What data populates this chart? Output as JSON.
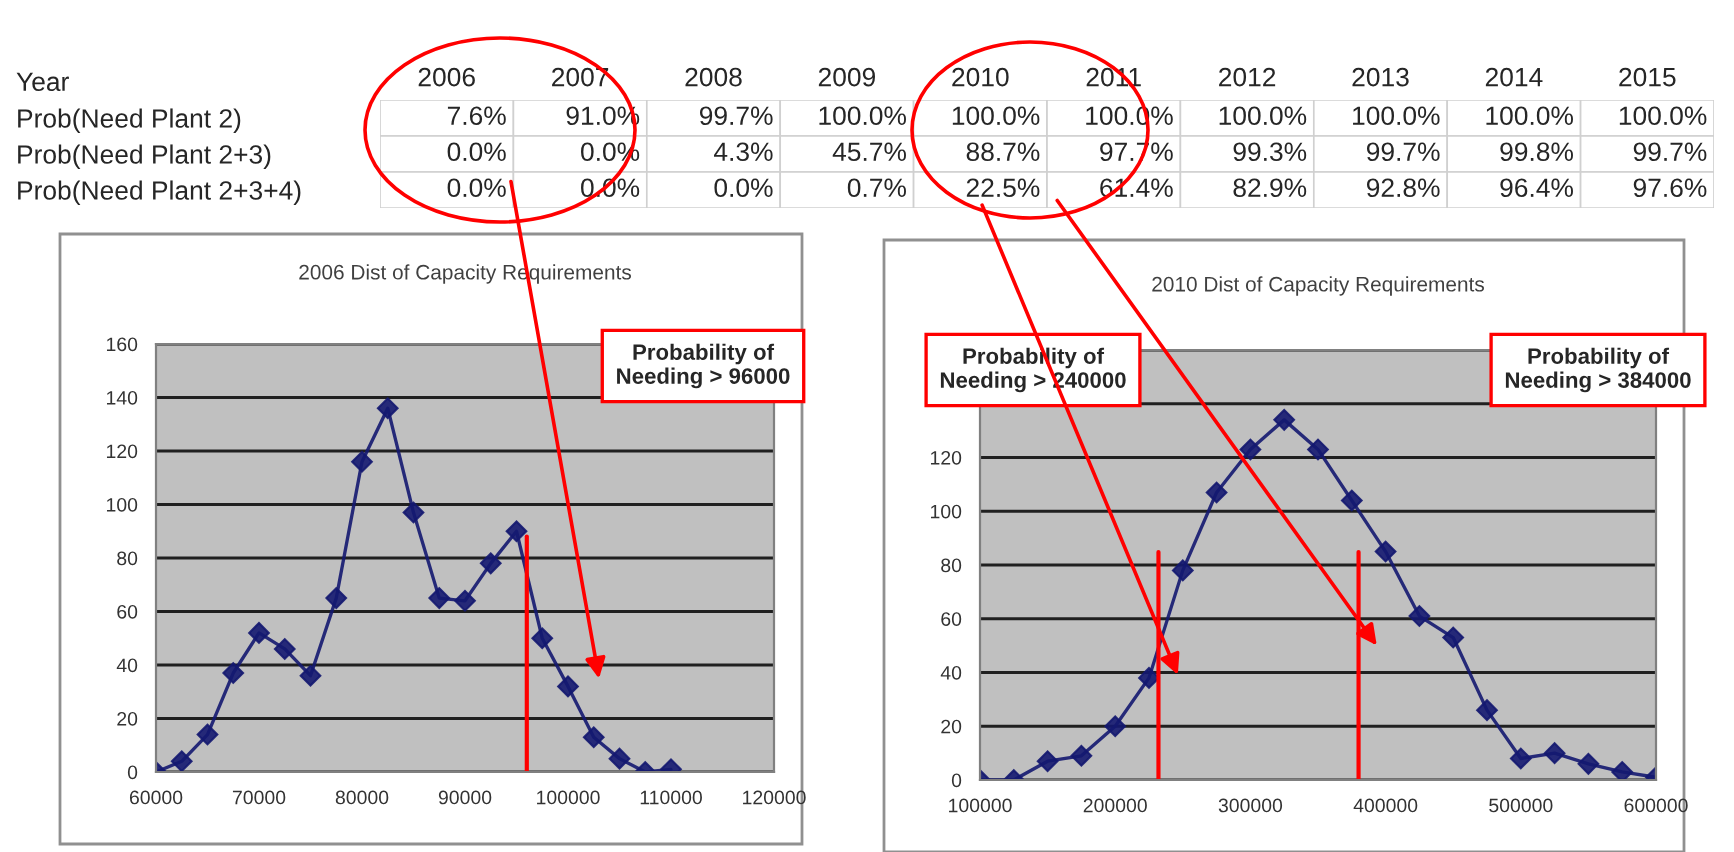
{
  "chart_data": [
    {
      "type": "heatmap",
      "annotations": [
        "Year"
      ],
      "categories": [
        "2006",
        "2007",
        "2008",
        "2009",
        "2010",
        "2011",
        "2012",
        "2013",
        "2014",
        "2015"
      ],
      "y_categories": [
        "Prob(Need Plant 2)",
        "Prob(Need Plant 2+3)",
        "Prob(Need Plant 2+3+4)"
      ],
      "cells": [
        [
          "7.6%",
          "91.0%",
          "99.7%",
          "100.0%",
          "100.0%",
          "100.0%",
          "100.0%",
          "100.0%",
          "100.0%",
          "100.0%"
        ],
        [
          "0.0%",
          "0.0%",
          "4.3%",
          "45.7%",
          "88.7%",
          "97.7%",
          "99.3%",
          "99.7%",
          "99.8%",
          "99.7%"
        ],
        [
          "0.0%",
          "0.0%",
          "0.0%",
          "0.7%",
          "22.5%",
          "61.4%",
          "82.9%",
          "92.8%",
          "96.4%",
          "97.6%"
        ]
      ]
    },
    {
      "type": "line",
      "title": "2006 Dist of Capacity Requirements",
      "marker": "diamond",
      "grid": "y",
      "x": [
        60000,
        62500,
        65000,
        67500,
        70000,
        72500,
        75000,
        77500,
        80000,
        82500,
        85000,
        87500,
        90000,
        92500,
        95000,
        97500,
        100000,
        102500,
        105000,
        107500,
        110000
      ],
      "series": [
        {
          "color": "#141870",
          "values": [
            0,
            4,
            14,
            37,
            52,
            46,
            36,
            65,
            116,
            136,
            97,
            65,
            64,
            78,
            90,
            50,
            32,
            13,
            5,
            0,
            1
          ]
        }
      ],
      "xlim": [
        60000,
        120000
      ],
      "xticks": [
        60000,
        70000,
        80000,
        90000,
        100000,
        110000,
        120000
      ],
      "ylim": [
        0,
        160
      ],
      "yticks": [
        0,
        20,
        40,
        60,
        80,
        100,
        120,
        140,
        160
      ],
      "ref_lines": [
        {
          "axis": "x",
          "value": 96000,
          "color": "#ff0000"
        }
      ],
      "annotations": [
        "Probability of\nNeeding > 96000"
      ]
    },
    {
      "type": "line",
      "title": "2010 Dist of Capacity Requirements",
      "marker": "diamond",
      "grid": "y",
      "x": [
        100000,
        125000,
        150000,
        175000,
        200000,
        225000,
        250000,
        275000,
        300000,
        325000,
        350000,
        375000,
        400000,
        425000,
        450000,
        475000,
        500000,
        525000,
        550000,
        575000,
        600000
      ],
      "series": [
        {
          "color": "#141870",
          "values": [
            0,
            0,
            7,
            9,
            20,
            38,
            78,
            107,
            123,
            134,
            123,
            104,
            85,
            61,
            53,
            26,
            8,
            10,
            6,
            3,
            1
          ]
        }
      ],
      "xlim": [
        100000,
        600000
      ],
      "xticks": [
        100000,
        200000,
        300000,
        400000,
        500000,
        600000
      ],
      "ylim": [
        0,
        160
      ],
      "yticks": [
        0,
        20,
        40,
        60,
        80,
        100,
        120,
        {
          "value": 140,
          "label": null
        },
        {
          "value": 160,
          "label": null
        }
      ],
      "ref_lines": [
        {
          "axis": "x",
          "value": 232000,
          "color": "#ff0000"
        },
        {
          "axis": "x",
          "value": 380000,
          "color": "#ff0000"
        }
      ],
      "annotations": [
        "Probability of\nNeeding > 240000",
        "Probability of\nNeeding > 384000"
      ]
    }
  ]
}
